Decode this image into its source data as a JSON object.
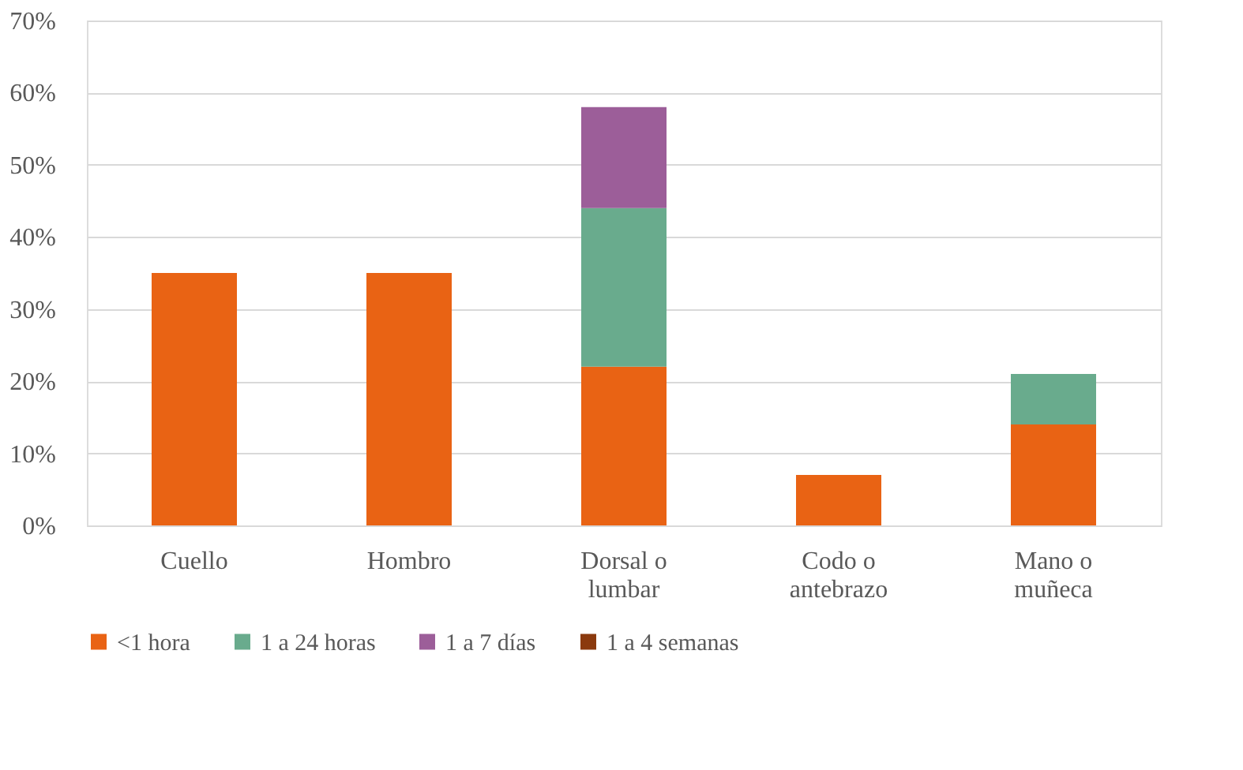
{
  "chart_data": {
    "type": "bar",
    "stacked": true,
    "categories": [
      "Cuello",
      "Hombro",
      "Dorsal o lumbar",
      "Codo o antebrazo",
      "Mano o muñeca"
    ],
    "series": [
      {
        "name": "<1 hora",
        "color": "#e96314",
        "values": [
          35,
          35,
          22,
          7,
          14
        ]
      },
      {
        "name": "1 a 24 horas",
        "color": "#69ab8d",
        "values": [
          null,
          null,
          22,
          null,
          7
        ]
      },
      {
        "name": "1 a 7 días",
        "color": "#9c5e99",
        "values": [
          null,
          null,
          14,
          null,
          null
        ]
      },
      {
        "name": "1 a 4 semanas",
        "color": "#8b3a0e",
        "values": [
          null,
          null,
          null,
          null,
          null
        ]
      }
    ],
    "ylim": [
      0,
      70
    ],
    "yticks": [
      {
        "value": 0,
        "label": "0%"
      },
      {
        "value": 10,
        "label": "10%"
      },
      {
        "value": 20,
        "label": "20%"
      },
      {
        "value": 30,
        "label": "30%"
      },
      {
        "value": 40,
        "label": "40%"
      },
      {
        "value": 50,
        "label": "50%"
      },
      {
        "value": 60,
        "label": "60%"
      },
      {
        "value": 70,
        "label": "70%"
      }
    ],
    "grid": "y",
    "legend": "bottom"
  }
}
